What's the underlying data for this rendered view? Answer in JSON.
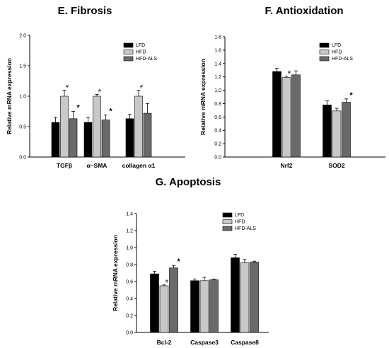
{
  "chart_data": [
    {
      "id": "E",
      "type": "bar",
      "title": "E. Fibrosis",
      "ylabel": "Relative mRNA expression",
      "ylim": [
        0,
        2.0
      ],
      "yticks": [
        "0.0",
        "0.5",
        "1.0",
        "1.5",
        "2.0"
      ],
      "categories": [
        "TGFβ",
        "α–SMA",
        "collagen α1"
      ],
      "legend": {
        "entries": [
          "LFD",
          "HFD",
          "HFD-ALS"
        ],
        "placement": "top-right"
      },
      "series": [
        {
          "name": "LFD",
          "color": "#000000",
          "values": [
            0.57,
            0.57,
            0.63
          ],
          "errors": [
            0.08,
            0.08,
            0.07
          ]
        },
        {
          "name": "HFD",
          "color": "#c8c8c8",
          "values": [
            1.0,
            1.0,
            1.0
          ],
          "errors": [
            0.1,
            0.03,
            0.1
          ]
        },
        {
          "name": "HFD-ALS",
          "color": "#6a6a6a",
          "values": [
            0.63,
            0.61,
            0.72
          ],
          "errors": [
            0.12,
            0.08,
            0.16
          ]
        }
      ],
      "annotations": [
        {
          "category": 0,
          "series": 1,
          "text": "#"
        },
        {
          "category": 0,
          "series": 2,
          "text": "*"
        },
        {
          "category": 1,
          "series": 1,
          "text": "#"
        },
        {
          "category": 1,
          "series": 2,
          "text": "*"
        },
        {
          "category": 2,
          "series": 1,
          "text": "#"
        }
      ]
    },
    {
      "id": "F",
      "type": "bar",
      "title": "F. Antioxidation",
      "ylabel": "Relative mRNA expression",
      "ylim": [
        0,
        1.8
      ],
      "yticks": [
        "0.0",
        "0.2",
        "0.4",
        "0.6",
        "0.8",
        "1.0",
        "1.2",
        "1.4",
        "1.6",
        "1.8"
      ],
      "categories": [
        "Nrf2",
        "SOD2"
      ],
      "legend": {
        "entries": [
          "LFD",
          "HFD",
          "HFD-ALS"
        ],
        "placement": "top-right"
      },
      "series": [
        {
          "name": "LFD",
          "color": "#000000",
          "values": [
            1.28,
            0.78
          ],
          "errors": [
            0.05,
            0.06
          ]
        },
        {
          "name": "HFD",
          "color": "#c8c8c8",
          "values": [
            1.19,
            0.69
          ],
          "errors": [
            0.02,
            0.04
          ]
        },
        {
          "name": "HFD-ALS",
          "color": "#6a6a6a",
          "values": [
            1.23,
            0.82
          ],
          "errors": [
            0.06,
            0.05
          ]
        }
      ],
      "annotations": [
        {
          "category": 0,
          "series": 1,
          "text": "#"
        },
        {
          "category": 1,
          "series": 2,
          "text": "*"
        }
      ]
    },
    {
      "id": "G",
      "type": "bar",
      "title": "G. Apoptosis",
      "ylabel": "Relative mRNA expression",
      "ylim": [
        0,
        1.4
      ],
      "yticks": [
        "0.0",
        "0.2",
        "0.4",
        "0.6",
        "0.8",
        "1.0",
        "1.2",
        "1.4"
      ],
      "categories": [
        "Bcl-2",
        "Caspase3",
        "Caspase8"
      ],
      "legend": {
        "entries": [
          "LFD",
          "HFD",
          "HFD-ALS"
        ],
        "placement": "top-right"
      },
      "series": [
        {
          "name": "LFD",
          "color": "#000000",
          "values": [
            0.69,
            0.61,
            0.88
          ],
          "errors": [
            0.03,
            0.02,
            0.04
          ]
        },
        {
          "name": "HFD",
          "color": "#c8c8c8",
          "values": [
            0.55,
            0.61,
            0.82
          ],
          "errors": [
            0.01,
            0.04,
            0.04
          ]
        },
        {
          "name": "HFD-ALS",
          "color": "#6a6a6a",
          "values": [
            0.76,
            0.62,
            0.83
          ],
          "errors": [
            0.03,
            0.01,
            0.01
          ]
        }
      ],
      "annotations": [
        {
          "category": 0,
          "series": 1,
          "text": "#"
        },
        {
          "category": 0,
          "series": 2,
          "text": "*"
        }
      ]
    }
  ]
}
